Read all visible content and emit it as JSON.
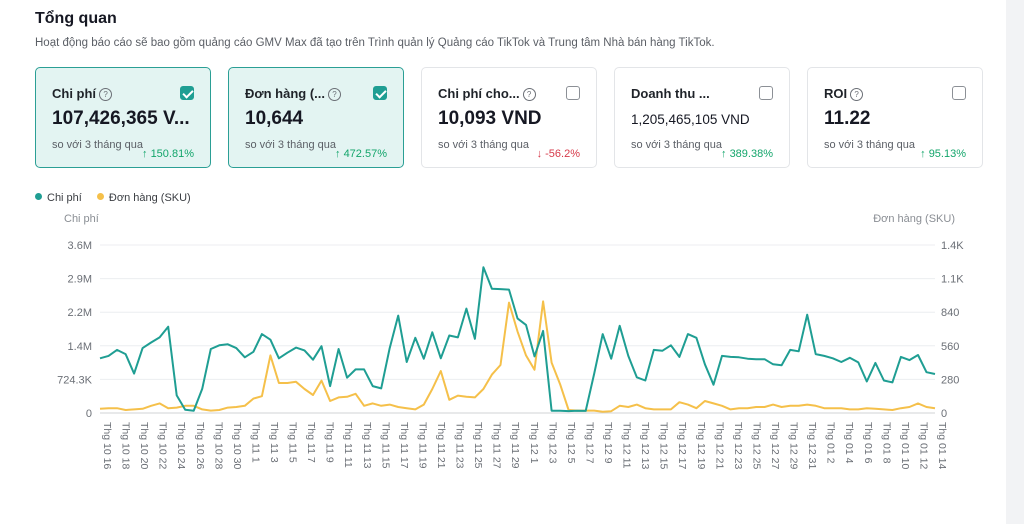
{
  "header": {
    "title": "Tổng quan",
    "subtitle": "Hoạt động báo cáo sẽ bao gồm quảng cáo GMV Max đã tạo trên Trình quản lý Quảng cáo TikTok và Trung tâm Nhà bán hàng TikTok."
  },
  "cards": [
    {
      "label": "Chi phí",
      "value": "107,426,365 V...",
      "compare": "so với 3 tháng qua",
      "change": "150.81%",
      "direction": "up",
      "selected": true
    },
    {
      "label": "Đơn hàng (...",
      "value": "10,644",
      "compare": "so với 3 tháng qua",
      "change": "472.57%",
      "direction": "up",
      "selected": true
    },
    {
      "label": "Chi phí cho...",
      "value": "10,093 VND",
      "compare": "so với 3 tháng qua",
      "change": "-56.2%",
      "direction": "down",
      "selected": false
    },
    {
      "label": "Doanh thu ...",
      "value": "1,205,465,105 VND",
      "compare": "so với 3 tháng qua",
      "change": "389.38%",
      "direction": "up",
      "selected": false
    },
    {
      "label": "ROI",
      "value": "11.22",
      "compare": "so với 3 tháng qua",
      "change": "95.13%",
      "direction": "up",
      "selected": false
    }
  ],
  "colors": {
    "chi_phi": "#1f9e93",
    "don_hang": "#f5c04a",
    "up": "#13a56b",
    "down": "#d63a4a"
  },
  "chart_data": {
    "type": "line",
    "legend": [
      "Chi phí",
      "Đơn hàng (SKU)"
    ],
    "ylabel_left": "Chi phí",
    "ylabel_right": "Đơn hàng (SKU)",
    "yticks_left": [
      "0",
      "724.3K",
      "1.4M",
      "2.2M",
      "2.9M",
      "3.6M"
    ],
    "yticks_right": [
      "0",
      "280",
      "560",
      "840",
      "1.1K",
      "1.4K"
    ],
    "ylim_left": [
      0,
      3621500
    ],
    "ylim_right": [
      0,
      1400
    ],
    "x_tick_labels": [
      "Thg 10 16",
      "Thg 10 18",
      "Thg 10 20",
      "Thg 10 22",
      "Thg 10 24",
      "Thg 10 26",
      "Thg 10 28",
      "Thg 10 30",
      "Thg 11 1",
      "Thg 11 3",
      "Thg 11 5",
      "Thg 11 7",
      "Thg 11 9",
      "Thg 11 11",
      "Thg 11 13",
      "Thg 11 15",
      "Thg 11 17",
      "Thg 11 19",
      "Thg 11 21",
      "Thg 11 23",
      "Thg 11 25",
      "Thg 11 27",
      "Thg 11 29",
      "Thg 12 1",
      "Thg 12 3",
      "Thg 12 5",
      "Thg 12 7",
      "Thg 12 9",
      "Thg 12 11",
      "Thg 12 13",
      "Thg 12 15",
      "Thg 12 17",
      "Thg 12 19",
      "Thg 12 21",
      "Thg 12 23",
      "Thg 12 25",
      "Thg 12 27",
      "Thg 12 29",
      "Thg 12 31",
      "Thg 01 2",
      "Thg 01 4",
      "Thg 01 6",
      "Thg 01 8",
      "Thg 01 10",
      "Thg 01 12",
      "Thg 01 14"
    ],
    "series": [
      {
        "name": "Chi phí",
        "values": [
          1180000,
          1230000,
          1360000,
          1270000,
          850000,
          1400000,
          1520000,
          1630000,
          1860000,
          380000,
          70000,
          50000,
          520000,
          1380000,
          1460000,
          1480000,
          1400000,
          1200000,
          1320000,
          1700000,
          1580000,
          1180000,
          1300000,
          1410000,
          1350000,
          1150000,
          1440000,
          580000,
          1380000,
          760000,
          940000,
          940000,
          580000,
          530000,
          1400000,
          2100000,
          1100000,
          1620000,
          1170000,
          1740000,
          1180000,
          1670000,
          1630000,
          2250000,
          1600000,
          3140000,
          2680000,
          2670000,
          2660000,
          2040000,
          1900000,
          1220000,
          1770000,
          50000,
          50000,
          40000,
          50000,
          45000,
          850000,
          1700000,
          1170000,
          1880000,
          1230000,
          770000,
          700000,
          1360000,
          1340000,
          1460000,
          1210000,
          1700000,
          1620000,
          1050000,
          610000,
          1230000,
          1210000,
          1200000,
          1170000,
          1160000,
          1160000,
          1050000,
          1030000,
          1360000,
          1330000,
          2120000,
          1270000,
          1230000,
          1180000,
          1100000,
          1190000,
          1090000,
          680000,
          1080000,
          700000,
          660000,
          1210000,
          1140000,
          1250000,
          880000,
          840000
        ]
      },
      {
        "name": "Đơn hàng (SKU)",
        "values": [
          35,
          40,
          40,
          25,
          30,
          35,
          60,
          80,
          40,
          45,
          60,
          60,
          30,
          20,
          25,
          45,
          50,
          60,
          120,
          140,
          480,
          250,
          250,
          260,
          200,
          150,
          270,
          100,
          130,
          135,
          160,
          60,
          80,
          60,
          70,
          50,
          40,
          30,
          70,
          200,
          350,
          110,
          145,
          135,
          130,
          200,
          320,
          400,
          920,
          680,
          480,
          360,
          930,
          420,
          240,
          25,
          20,
          20,
          20,
          10,
          15,
          60,
          50,
          70,
          40,
          30,
          30,
          30,
          90,
          70,
          40,
          100,
          80,
          60,
          30,
          40,
          40,
          50,
          50,
          70,
          50,
          60,
          60,
          70,
          60,
          40,
          40,
          40,
          30,
          30,
          40,
          35,
          30,
          25,
          40,
          50,
          80,
          50,
          40
        ]
      }
    ]
  }
}
